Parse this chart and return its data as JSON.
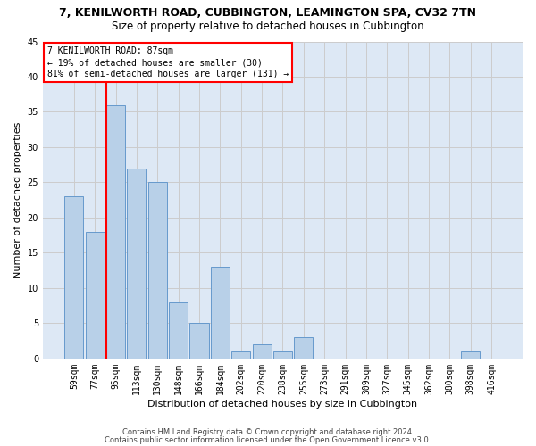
{
  "title": "7, KENILWORTH ROAD, CUBBINGTON, LEAMINGTON SPA, CV32 7TN",
  "subtitle": "Size of property relative to detached houses in Cubbington",
  "xlabel": "Distribution of detached houses by size in Cubbington",
  "ylabel": "Number of detached properties",
  "bar_labels": [
    "59sqm",
    "77sqm",
    "95sqm",
    "113sqm",
    "130sqm",
    "148sqm",
    "166sqm",
    "184sqm",
    "202sqm",
    "220sqm",
    "238sqm",
    "255sqm",
    "273sqm",
    "291sqm",
    "309sqm",
    "327sqm",
    "345sqm",
    "362sqm",
    "380sqm",
    "398sqm",
    "416sqm"
  ],
  "bar_values": [
    23,
    18,
    36,
    27,
    25,
    8,
    5,
    13,
    1,
    2,
    1,
    3,
    0,
    0,
    0,
    0,
    0,
    0,
    0,
    1,
    0
  ],
  "bar_color": "#b8d0e8",
  "bar_edge_color": "#6699cc",
  "ylim": [
    0,
    45
  ],
  "yticks": [
    0,
    5,
    10,
    15,
    20,
    25,
    30,
    35,
    40,
    45
  ],
  "grid_color": "#cccccc",
  "bg_color": "#dde8f5",
  "annotation_line1": "7 KENILWORTH ROAD: 87sqm",
  "annotation_line2": "← 19% of detached houses are smaller (30)",
  "annotation_line3": "81% of semi-detached houses are larger (131) →",
  "footer1": "Contains HM Land Registry data © Crown copyright and database right 2024.",
  "footer2": "Contains public sector information licensed under the Open Government Licence v3.0.",
  "title_fontsize": 9,
  "subtitle_fontsize": 8.5,
  "tick_fontsize": 7,
  "ylabel_fontsize": 8,
  "xlabel_fontsize": 8,
  "annotation_fontsize": 7,
  "footer_fontsize": 6
}
